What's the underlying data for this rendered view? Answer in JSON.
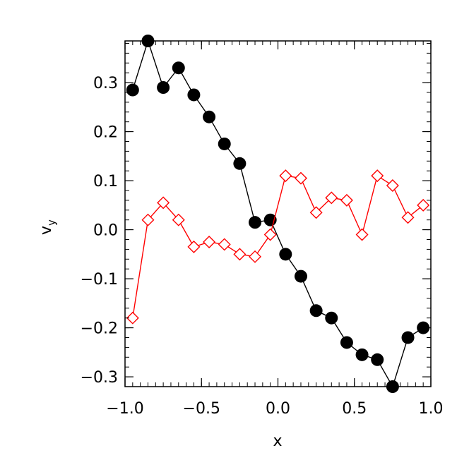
{
  "chart_data": {
    "type": "line",
    "title": "",
    "xlabel": "x",
    "ylabel": "v",
    "ylabel_subscript": "y",
    "xlim": [
      -1.0,
      1.0
    ],
    "ylim": [
      -0.32,
      0.385
    ],
    "x_ticks": [
      -1.0,
      -0.5,
      0.0,
      0.5,
      1.0
    ],
    "x_tick_labels": [
      "−1.0",
      "−0.5",
      "0.0",
      "0.5",
      "1.0"
    ],
    "y_ticks": [
      -0.3,
      -0.2,
      -0.1,
      0.0,
      0.1,
      0.2,
      0.3
    ],
    "y_tick_labels": [
      "−0.3",
      "−0.2",
      "−0.1",
      "0.0",
      "0.1",
      "0.2",
      "0.3"
    ],
    "grid": false,
    "x": [
      -0.95,
      -0.85,
      -0.75,
      -0.65,
      -0.55,
      -0.45,
      -0.35,
      -0.25,
      -0.15,
      -0.05,
      0.05,
      0.15,
      0.25,
      0.35,
      0.45,
      0.55,
      0.65,
      0.75,
      0.85,
      0.95
    ],
    "series": [
      {
        "color": "#000000",
        "marker": "filled-circle",
        "values": [
          0.285,
          0.385,
          0.29,
          0.33,
          0.275,
          0.23,
          0.175,
          0.135,
          0.015,
          0.02,
          -0.05,
          -0.095,
          -0.165,
          -0.18,
          -0.23,
          -0.255,
          -0.265,
          -0.32,
          -0.22,
          -0.2
        ]
      },
      {
        "color": "#ff0000",
        "marker": "open-diamond",
        "values": [
          -0.18,
          0.02,
          0.055,
          0.02,
          -0.035,
          -0.025,
          -0.03,
          -0.05,
          -0.055,
          -0.01,
          0.11,
          0.105,
          0.035,
          0.065,
          0.06,
          -0.01,
          0.11,
          0.09,
          0.025,
          0.05
        ]
      }
    ]
  }
}
